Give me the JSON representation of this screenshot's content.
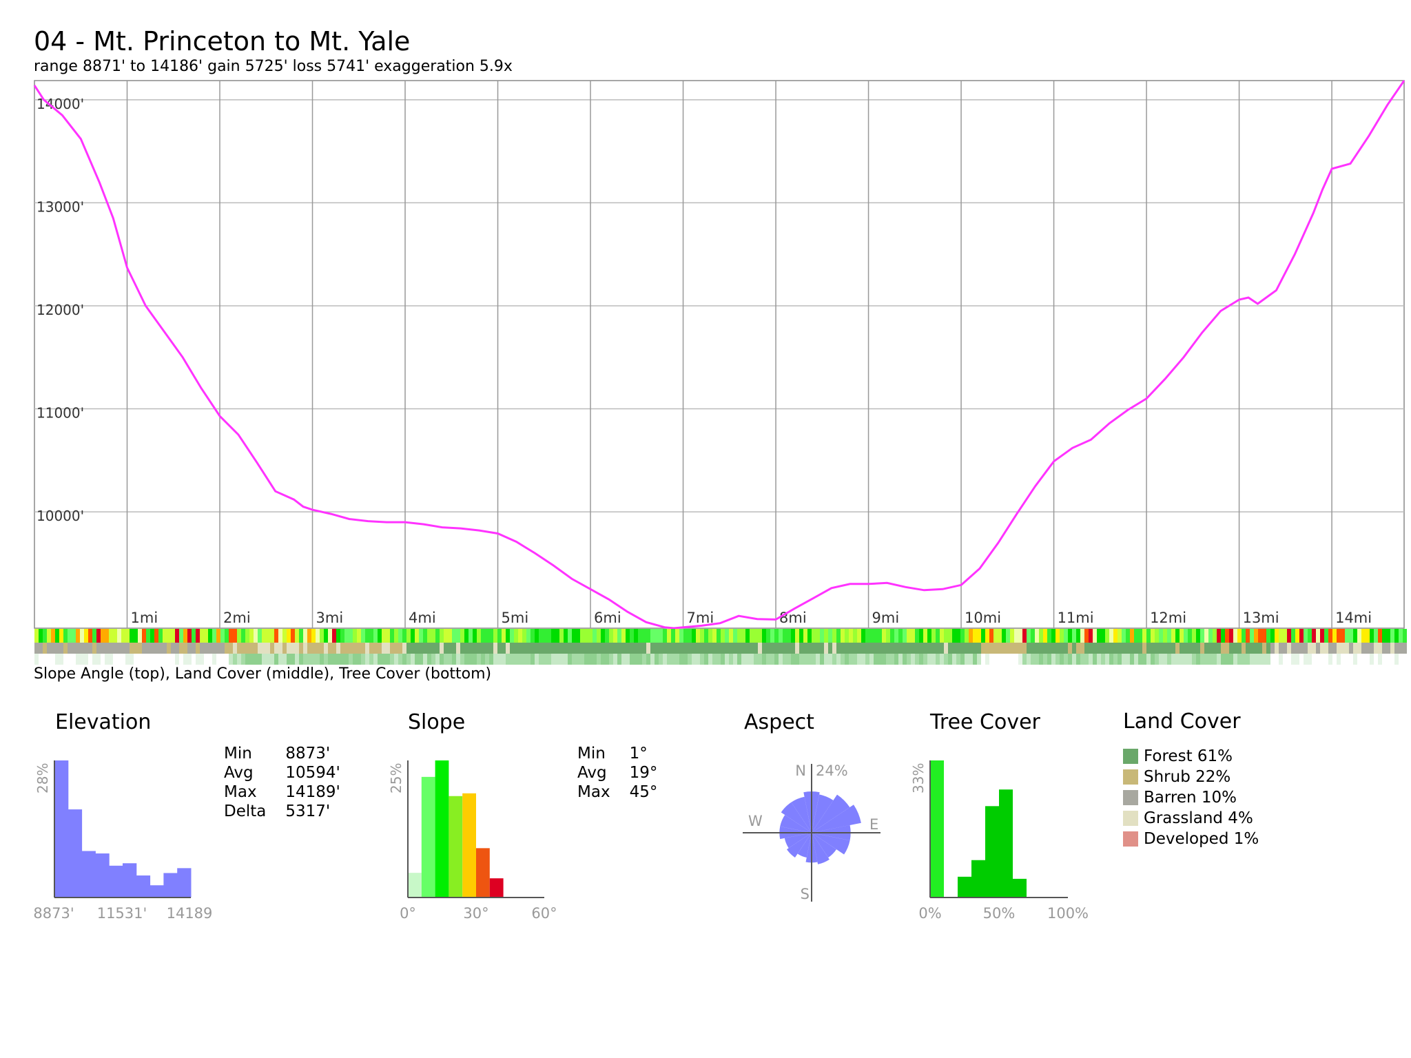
{
  "title": "04 - Mt. Princeton to Mt. Yale",
  "subtitle": "range 8871' to 14186'  gain 5725'  loss 5741'  exaggeration 5.9x",
  "strip_caption": "Slope Angle (top), Land Cover (middle), Tree Cover (bottom)",
  "colors": {
    "profile_line": "#ff33ff",
    "histogram": "#8080ff",
    "forest": "#6aa86a",
    "shrub": "#c8b878",
    "barren": "#a8a8a0",
    "grassland": "#e2e0c2",
    "developed": "#e09088",
    "tree_green": "#00cc00",
    "tree_bright": "#22ee22"
  },
  "chart_data": [
    {
      "id": "profile",
      "type": "line",
      "xlabel": "",
      "ylabel": "",
      "xlim": [
        0,
        14.78
      ],
      "ylim": [
        8871,
        14186
      ],
      "y_ticks": [
        {
          "value": 14000,
          "label": "14000'"
        },
        {
          "value": 13000,
          "label": "13000'"
        },
        {
          "value": 12000,
          "label": "12000'"
        },
        {
          "value": 11000,
          "label": "11000'"
        },
        {
          "value": 10000,
          "label": "10000'"
        }
      ],
      "x_ticks": [
        {
          "value": 1,
          "label": "1mi"
        },
        {
          "value": 2,
          "label": "2mi"
        },
        {
          "value": 3,
          "label": "3mi"
        },
        {
          "value": 4,
          "label": "4mi"
        },
        {
          "value": 5,
          "label": "5mi"
        },
        {
          "value": 6,
          "label": "6mi"
        },
        {
          "value": 7,
          "label": "7mi"
        },
        {
          "value": 8,
          "label": "8mi"
        },
        {
          "value": 9,
          "label": "9mi"
        },
        {
          "value": 10,
          "label": "10mi"
        },
        {
          "value": 11,
          "label": "11mi"
        },
        {
          "value": 12,
          "label": "12mi"
        },
        {
          "value": 13,
          "label": "13mi"
        },
        {
          "value": 14,
          "label": "14mi"
        }
      ],
      "grid": true,
      "series": [
        {
          "x": [
            0,
            0.1,
            0.3,
            0.5,
            0.7,
            0.85,
            1.0,
            1.2,
            1.4,
            1.6,
            1.8,
            2.0,
            2.2,
            2.4,
            2.6,
            2.8,
            2.9,
            3.0,
            3.2,
            3.4,
            3.6,
            3.8,
            4.0,
            4.2,
            4.4,
            4.6,
            4.8,
            5.0,
            5.2,
            5.4,
            5.6,
            5.8,
            6.0,
            6.2,
            6.4,
            6.6,
            6.8,
            6.9,
            7.0,
            7.2,
            7.4,
            7.6,
            7.8,
            8.0,
            8.2,
            8.4,
            8.6,
            8.8,
            9.0,
            9.2,
            9.4,
            9.6,
            9.8,
            10.0,
            10.2,
            10.4,
            10.6,
            10.8,
            11.0,
            11.2,
            11.4,
            11.6,
            11.8,
            12.0,
            12.2,
            12.4,
            12.6,
            12.8,
            13.0,
            13.1,
            13.2,
            13.4,
            13.6,
            13.8,
            13.9,
            14.0,
            14.2,
            14.4,
            14.6,
            14.78
          ],
          "y": [
            14140,
            14000,
            13850,
            13620,
            13200,
            12850,
            12370,
            12000,
            11750,
            11500,
            11200,
            10930,
            10750,
            10480,
            10200,
            10120,
            10050,
            10020,
            9980,
            9930,
            9910,
            9900,
            9900,
            9880,
            9850,
            9840,
            9820,
            9790,
            9710,
            9600,
            9480,
            9350,
            9250,
            9150,
            9030,
            8930,
            8880,
            8871,
            8880,
            8895,
            8920,
            8990,
            8960,
            8955,
            9060,
            9160,
            9260,
            9300,
            9300,
            9310,
            9270,
            9240,
            9250,
            9290,
            9450,
            9700,
            9980,
            10250,
            10490,
            10620,
            10700,
            10860,
            10990,
            11100,
            11290,
            11500,
            11740,
            11950,
            12060,
            12080,
            12020,
            12150,
            12500,
            12900,
            13130,
            13330,
            13380,
            13650,
            13950,
            14186
          ]
        }
      ]
    },
    {
      "id": "elevation_hist",
      "type": "bar",
      "title": "Elevation",
      "ylabel": "28%",
      "x_tick_labels": [
        "8873'",
        "11531'",
        "14189"
      ],
      "ylim": [
        0,
        28
      ],
      "values": [
        28,
        18,
        9.5,
        9,
        6.5,
        7,
        4.5,
        2.5,
        5,
        6
      ]
    },
    {
      "id": "slope_hist",
      "type": "bar",
      "title": "Slope",
      "ylabel": "25%",
      "x_tick_labels": [
        "0°",
        "30°",
        "60°"
      ],
      "xlim": [
        0,
        60
      ],
      "ylim": [
        0,
        25
      ],
      "values": [
        4.5,
        22,
        25,
        18.5,
        19,
        9,
        3.5
      ],
      "bar_colors": [
        "#c8f8c8",
        "#66ff66",
        "#00ee00",
        "#88ee22",
        "#ffcc00",
        "#ee5511",
        "#dd0022"
      ]
    },
    {
      "id": "aspect_rose",
      "type": "pie",
      "title": "Aspect",
      "max_label": "24%",
      "direction_labels": [
        "N",
        "E",
        "S",
        "W"
      ],
      "values": [
        18,
        17,
        20,
        22,
        17,
        17,
        13,
        14,
        13,
        11,
        13,
        12,
        14,
        14,
        16,
        16
      ]
    },
    {
      "id": "tree_hist",
      "type": "bar",
      "title": "Tree Cover",
      "ylabel": "33%",
      "x_tick_labels": [
        "0%",
        "50%",
        "100%"
      ],
      "xlim": [
        0,
        100
      ],
      "ylim": [
        0,
        33
      ],
      "values": [
        33,
        0,
        5,
        9,
        22,
        26,
        4.5,
        0,
        0,
        0
      ]
    }
  ],
  "elevation_stats": [
    {
      "label": "Min",
      "value": "8873'"
    },
    {
      "label": "Avg",
      "value": "10594'"
    },
    {
      "label": "Max",
      "value": "14189'"
    },
    {
      "label": "Delta",
      "value": "5317'"
    }
  ],
  "slope_stats": [
    {
      "label": "Min",
      "value": "1°"
    },
    {
      "label": "Avg",
      "value": "19°"
    },
    {
      "label": "Max",
      "value": "45°"
    }
  ],
  "land_cover": {
    "title": "Land Cover",
    "items": [
      {
        "label": "Forest 61%",
        "color": "#6aa86a"
      },
      {
        "label": "Shrub 22%",
        "color": "#c8b878"
      },
      {
        "label": "Barren 10%",
        "color": "#a8a8a0"
      },
      {
        "label": "Grassland 4%",
        "color": "#e2e0c2"
      },
      {
        "label": "Developed 1%",
        "color": "#e09088"
      }
    ]
  }
}
